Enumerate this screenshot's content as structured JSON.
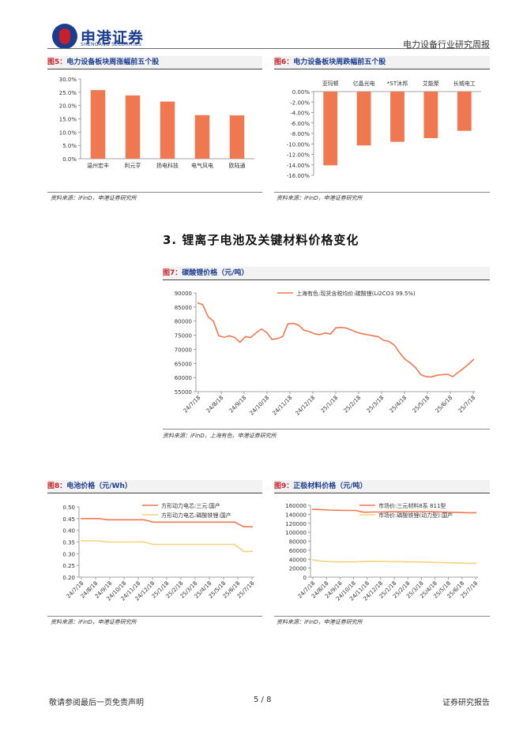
{
  "header": {
    "logo_text": "申港证券",
    "logo_sub": "SHENGANG SECURITIES",
    "report_type": "电力设备行业研究周报"
  },
  "fig5": {
    "title_no": "图5：",
    "title": "电力设备板块周涨幅前五个股",
    "source": "资料来源：iFinD，申港证券研究所"
  },
  "fig6": {
    "title_no": "图6：",
    "title": "电力设备板块周跌幅前五个股",
    "source": "资料来源：iFinD，申港证券研究所"
  },
  "section": {
    "heading": "3. 锂离子电池及关键材料价格变化"
  },
  "fig7": {
    "title_no": "图7：",
    "title": "碳酸锂价格（元/吨）",
    "source": "资料来源：iFinD，上海有色，申港证券研究所"
  },
  "fig8": {
    "title_no": "图8：",
    "title": "电池价格（元/Wh）",
    "source": "资料来源：iFinD，申港证券研究所"
  },
  "fig9": {
    "title_no": "图9：",
    "title": "正极材料价格（元/吨）",
    "source": "资料来源：iFinD，申港证券研究所"
  },
  "footer": {
    "left": "敬请参阅最后一页免责声明",
    "page": "5 / 8",
    "right": "证券研究报告"
  },
  "chart_data": [
    {
      "id": "fig5",
      "type": "bar",
      "categories": [
        "温州宏丰",
        "利元亨",
        "扬电科技",
        "电气风电",
        "欧陆通"
      ],
      "values": [
        25.8,
        23.8,
        21.5,
        16.4,
        16.3
      ],
      "ylim": [
        0,
        30
      ],
      "ytick_step": 5,
      "tick_format": "pct1",
      "color": "#f07850"
    },
    {
      "id": "fig6",
      "type": "bar",
      "categories": [
        "亚玛顿",
        "亿晶光电",
        "*ST沐邦",
        "艾能聚",
        "长城电工"
      ],
      "values": [
        -14.1,
        -10.3,
        -9.6,
        -8.9,
        -7.5
      ],
      "ylim": [
        -16,
        0
      ],
      "ytick_step": 2,
      "tick_format": "pct2",
      "color": "#f07850"
    },
    {
      "id": "fig7",
      "type": "line",
      "x_ticks": [
        "24/7/18",
        "24/8/18",
        "24/9/18",
        "24/10/18",
        "24/11/18",
        "24/12/18",
        "25/1/18",
        "25/2/18",
        "25/3/18",
        "25/4/18",
        "25/5/18",
        "25/6/18",
        "25/7/18"
      ],
      "ylim": [
        55000,
        90000
      ],
      "ytick_step": 5000,
      "series": [
        {
          "name": "上海有色:现货含税均价:碳酸锂(Li2CO3 99.5%)",
          "color": "#f07850",
          "values": [
            86500,
            85800,
            81500,
            80000,
            74800,
            74300,
            74800,
            74200,
            72500,
            74500,
            74200,
            75800,
            77200,
            76000,
            73500,
            73800,
            74500,
            79000,
            79200,
            78600,
            76800,
            76300,
            75500,
            75200,
            75800,
            75400,
            77600,
            77800,
            77500,
            76800,
            76000,
            75500,
            75200,
            74800,
            74500,
            73200,
            72800,
            71500,
            68800,
            66500,
            65200,
            63500,
            61000,
            60300,
            60200,
            60800,
            61000,
            61200,
            60300,
            61800,
            63200,
            64800,
            66500
          ]
        }
      ]
    },
    {
      "id": "fig8",
      "type": "line",
      "x_ticks": [
        "24/7/18",
        "24/8/18",
        "24/9/18",
        "24/10/18",
        "24/11/18",
        "24/12/18",
        "25/1/18",
        "25/2/18",
        "25/3/18",
        "25/4/18",
        "25/5/18",
        "25/6/18",
        "25/7/18"
      ],
      "ylim": [
        0.2,
        0.5
      ],
      "ytick_step": 0.05,
      "series": [
        {
          "name": "方形动力电芯:三元:国产",
          "color": "#f07850",
          "values": [
            0.45,
            0.45,
            0.45,
            0.445,
            0.445,
            0.445,
            0.445,
            0.445,
            0.435,
            0.435,
            0.435,
            0.435,
            0.435,
            0.435,
            0.435,
            0.435,
            0.435,
            0.435,
            0.415,
            0.415
          ]
        },
        {
          "name": "方形动力电芯:磷酸铁锂:国产",
          "color": "#f5d27a",
          "values": [
            0.355,
            0.355,
            0.355,
            0.35,
            0.35,
            0.35,
            0.35,
            0.35,
            0.34,
            0.34,
            0.34,
            0.34,
            0.34,
            0.34,
            0.34,
            0.34,
            0.34,
            0.34,
            0.31,
            0.31
          ]
        }
      ]
    },
    {
      "id": "fig9",
      "type": "line",
      "x_ticks": [
        "24/7/18",
        "24/8/18",
        "24/9/18",
        "24/10/18",
        "24/11/18",
        "24/12/18",
        "25/1/18",
        "25/2/18",
        "25/3/18",
        "25/4/18",
        "25/5/18",
        "25/6/18",
        "25/7/18"
      ],
      "ylim": [
        0,
        160000
      ],
      "ytick_step": 20000,
      "series": [
        {
          "name": "市场价:三元材料8系 811型",
          "color": "#f07850",
          "values": [
            151000,
            150500,
            149500,
            149000,
            148500,
            148500,
            144500,
            145000,
            145000,
            145500,
            145500,
            146000,
            146000,
            146000,
            145500,
            145000,
            144500,
            144000,
            143500,
            143500
          ]
        },
        {
          "name": "市场价:磷酸铁锂(动力型):国产",
          "color": "#f5d27a",
          "values": [
            38500,
            36000,
            34500,
            34000,
            34000,
            34000,
            35000,
            35000,
            35000,
            34500,
            34500,
            34000,
            34000,
            33500,
            33000,
            32500,
            32000,
            31500,
            31000,
            31000
          ]
        }
      ]
    }
  ]
}
